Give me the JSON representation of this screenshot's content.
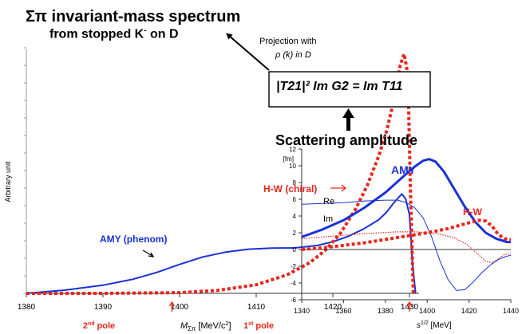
{
  "colors": {
    "blue": "#1a31d6",
    "red": "#e8261c",
    "black": "#000000"
  },
  "header": {
    "title_line1": "Σπ invariant-mass spectrum",
    "title_line2": "from stopped K",
    "title_line2_sup": "-",
    "title_line2_tail": " on D",
    "projection_line1": "Projection with",
    "projection_line2": "ρ (k) in D",
    "formula": "|T21|² Im G2 = Im T11",
    "scattering_label": "Scattering amplitude"
  },
  "chart_data": [
    {
      "type": "line",
      "title": "Σπ invariant-mass spectrum from stopped K- on D",
      "xlabel": "MΣπ [MeV/c²]",
      "ylabel": "Arbitrary unit",
      "xlim": [
        1380,
        1431
      ],
      "ylim": [
        0,
        1
      ],
      "x_ticks": [
        "1380",
        "1390",
        "1400",
        "1410",
        "1420",
        "1430"
      ],
      "grid": false,
      "series": [
        {
          "name": "AMY (phenom)",
          "style": "solid",
          "color": "#1a31d6",
          "x": [
            1380,
            1385,
            1390,
            1394,
            1397,
            1400,
            1403,
            1406,
            1409,
            1412,
            1415,
            1418,
            1420,
            1422,
            1424,
            1426,
            1427,
            1428,
            1429,
            1429.5,
            1430,
            1430.4,
            1430.8
          ],
          "y": [
            0,
            0.013,
            0.033,
            0.058,
            0.085,
            0.118,
            0.148,
            0.168,
            0.18,
            0.184,
            0.185,
            0.195,
            0.21,
            0.232,
            0.262,
            0.3,
            0.33,
            0.37,
            0.405,
            0.385,
            0.32,
            0.12,
            0
          ]
        },
        {
          "name": "H-W (chiral)",
          "style": "dotted",
          "color": "#e8261c",
          "x": [
            1380,
            1390,
            1400,
            1405,
            1410,
            1414,
            1417,
            1419,
            1421,
            1423,
            1424.5,
            1426,
            1427,
            1428,
            1428.8,
            1429.3,
            1429.8,
            1430.1,
            1430.5
          ],
          "y": [
            0,
            0,
            0.003,
            0.012,
            0.035,
            0.075,
            0.125,
            0.175,
            0.245,
            0.345,
            0.44,
            0.56,
            0.66,
            0.79,
            0.93,
            0.975,
            0.89,
            0.45,
            0
          ]
        }
      ],
      "annotations": [
        {
          "text": "AMY (phenom)",
          "color": "#1a31d6"
        },
        {
          "text": "H-W (chiral)",
          "color": "#e8261c"
        },
        {
          "text": "2nd pole",
          "color": "#e8261c",
          "x": 1399
        },
        {
          "text": "1st pole",
          "color": "#e8261c",
          "x": 1430
        }
      ],
      "pole_labels": {
        "second_base": "2",
        "second_sup": "nd",
        "second_tail": " pole",
        "first_base": "1",
        "first_sup": "st",
        "first_tail": " pole"
      },
      "xlabel_parts": {
        "m": "M",
        "sub": "Σπ",
        "units": "  [MeV/c",
        "units_sup": "2",
        "units_end": "]"
      }
    },
    {
      "type": "line",
      "title": "Scattering amplitude",
      "xlabel": "s^1/2 [MeV]",
      "ylabel": "[fm]",
      "xlim": [
        1340,
        1440
      ],
      "ylim": [
        -6,
        12
      ],
      "x_ticks": [
        "1340",
        "1360",
        "1380",
        "1400",
        "1420",
        "1440"
      ],
      "y_ticks": [
        "12",
        "10",
        "8",
        "6",
        "4",
        "2",
        "0",
        "-2",
        "-4",
        "-6"
      ],
      "grid": false,
      "xlabel_parts": {
        "s": "s",
        "sup": "1/2",
        "units": "  [MeV]"
      },
      "series": [
        {
          "name": "AMY Im",
          "style": "solid-thick",
          "color": "#1a31d6",
          "x": [
            1340,
            1350,
            1360,
            1370,
            1380,
            1388,
            1394,
            1398,
            1401,
            1404,
            1408,
            1413,
            1418,
            1423,
            1428,
            1433,
            1438,
            1440
          ],
          "y": [
            1.5,
            2.4,
            3.5,
            5.0,
            6.8,
            8.6,
            9.9,
            10.6,
            10.8,
            10.5,
            9.3,
            7.2,
            5.1,
            3.3,
            2.0,
            1.3,
            0.9,
            0.9
          ]
        },
        {
          "name": "AMY Re",
          "style": "solid-thin",
          "color": "#1a31d6",
          "x": [
            1340,
            1350,
            1360,
            1370,
            1380,
            1386,
            1390,
            1394,
            1398,
            1402,
            1406,
            1410,
            1414,
            1418,
            1422,
            1426,
            1430,
            1434,
            1438,
            1440
          ],
          "y": [
            5.4,
            5.5,
            5.6,
            5.8,
            5.9,
            5.9,
            5.6,
            5.0,
            3.8,
            1.6,
            -1.3,
            -3.6,
            -4.9,
            -4.8,
            -3.9,
            -2.8,
            -1.9,
            -1.2,
            -0.8,
            -0.7
          ]
        },
        {
          "name": "H-W Im",
          "style": "dotted-thick",
          "color": "#e8261c",
          "x": [
            1340,
            1350,
            1360,
            1370,
            1380,
            1390,
            1400,
            1410,
            1420,
            1425,
            1428,
            1431,
            1434,
            1437,
            1440
          ],
          "y": [
            0,
            0.2,
            0.5,
            0.8,
            1.2,
            1.6,
            2.0,
            2.5,
            3.2,
            3.5,
            3.4,
            2.8,
            1.8,
            1.3,
            1.2
          ]
        },
        {
          "name": "H-W Re",
          "style": "dotted-thin",
          "color": "#e8261c",
          "x": [
            1340,
            1355,
            1370,
            1385,
            1395,
            1405,
            1413,
            1419,
            1424,
            1428,
            1431,
            1434,
            1437,
            1440
          ],
          "y": [
            1.3,
            1.6,
            1.9,
            2.1,
            2.1,
            1.9,
            1.4,
            0.6,
            -0.5,
            -1.4,
            -1.6,
            -1.1,
            -0.6,
            -0.5
          ]
        }
      ],
      "annotations": [
        {
          "text": "AMY",
          "color": "#1a31d6"
        },
        {
          "text": "H-W",
          "color": "#e8261c"
        },
        {
          "text": "Re",
          "color": "#000000"
        },
        {
          "text": "Im",
          "color": "#000000"
        }
      ]
    }
  ]
}
